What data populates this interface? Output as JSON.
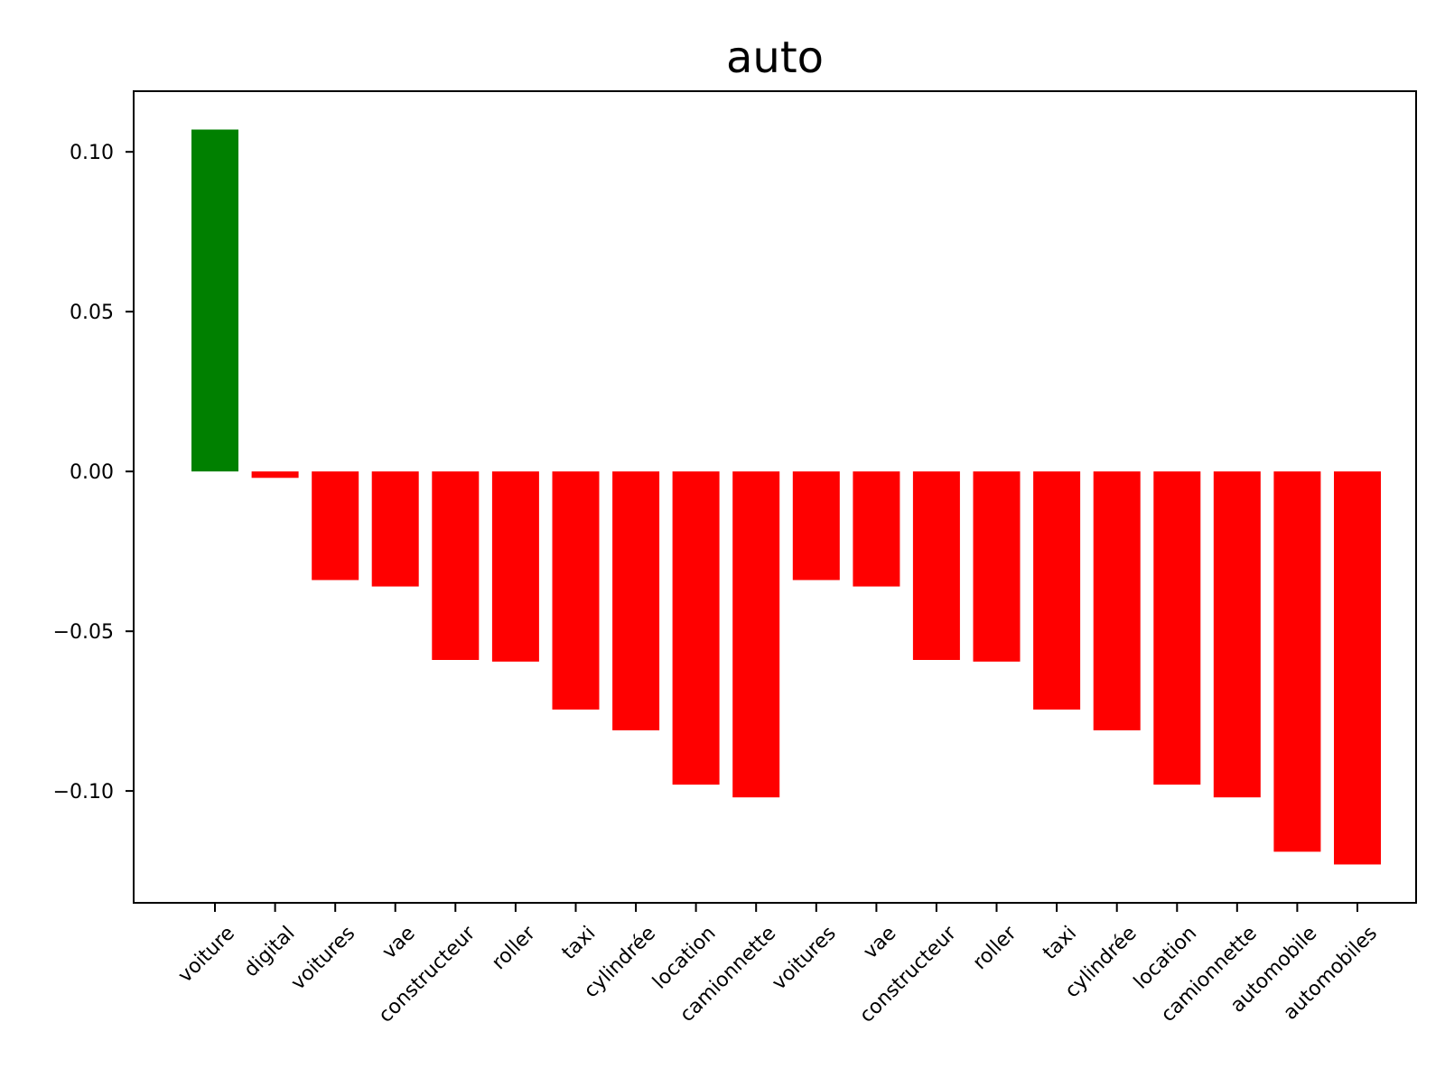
{
  "chart_data": {
    "type": "bar",
    "title": "auto",
    "xlabel": "",
    "ylabel": "",
    "categories": [
      "voiture",
      "digital",
      "voitures",
      "vae",
      "constructeur",
      "roller",
      "taxi",
      "cylindrée",
      "location",
      "camionnette",
      "voitures",
      "vae",
      "constructeur",
      "roller",
      "taxi",
      "cylindrée",
      "location",
      "camionnette",
      "automobile",
      "automobiles"
    ],
    "values": [
      0.107,
      -0.002,
      -0.034,
      -0.036,
      -0.059,
      -0.0595,
      -0.0745,
      -0.081,
      -0.098,
      -0.102,
      -0.034,
      -0.036,
      -0.059,
      -0.0595,
      -0.0745,
      -0.081,
      -0.098,
      -0.102,
      -0.119,
      -0.123
    ],
    "bar_colors": [
      "#008000",
      "#ff0000",
      "#ff0000",
      "#ff0000",
      "#ff0000",
      "#ff0000",
      "#ff0000",
      "#ff0000",
      "#ff0000",
      "#ff0000",
      "#ff0000",
      "#ff0000",
      "#ff0000",
      "#ff0000",
      "#ff0000",
      "#ff0000",
      "#ff0000",
      "#ff0000",
      "#ff0000",
      "#ff0000"
    ],
    "ylim": [
      -0.135,
      0.119
    ],
    "yticks": [
      0.1,
      0.05,
      0.0,
      -0.05,
      -0.1
    ],
    "ytick_labels": [
      "0.10",
      "0.05",
      "0.00",
      "−0.05",
      "−0.10"
    ],
    "grid": false,
    "legend": "none"
  }
}
